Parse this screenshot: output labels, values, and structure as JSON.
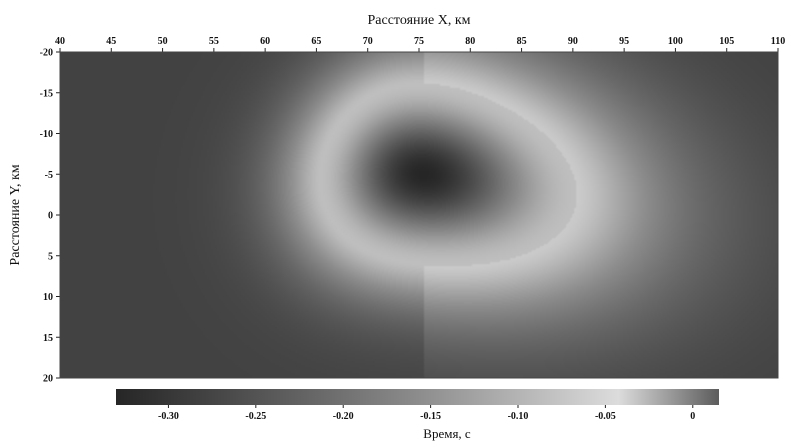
{
  "chart_data": {
    "type": "heatmap",
    "xlabel": "Расстояние X, км",
    "ylabel": "Расстояние Y, км",
    "x_ticks": [
      "40",
      "45",
      "50",
      "55",
      "60",
      "65",
      "70",
      "75",
      "80",
      "85",
      "90",
      "95",
      "100",
      "105",
      "110"
    ],
    "y_ticks": [
      "-20",
      "-15",
      "-10",
      "-5",
      "0",
      "5",
      "10",
      "15",
      "20"
    ],
    "xlim": [
      40,
      110
    ],
    "ylim": [
      -20,
      20
    ],
    "y_axis_direction": "down",
    "x_axis_position": "top",
    "grid": false,
    "colorbar": {
      "label": "Время, с",
      "ticks": [
        "-0.30",
        "-0.25",
        "-0.20",
        "-0.15",
        "-0.10",
        "-0.05",
        "0"
      ],
      "range": [
        -0.33,
        0.015
      ],
      "placement": "bottom"
    },
    "anomaly": {
      "center_x": 75.5,
      "center_y": -5,
      "min_value": -0.33,
      "ring_value": -0.085,
      "background_value": -0.28
    }
  },
  "colors": {
    "colormap": [
      "#262626",
      "#464646",
      "#686868",
      "#8c8c8c",
      "#b4b4b4",
      "#dcdcdc",
      "#5c5c5c"
    ],
    "background": "#ffffff",
    "text": "#111111"
  }
}
